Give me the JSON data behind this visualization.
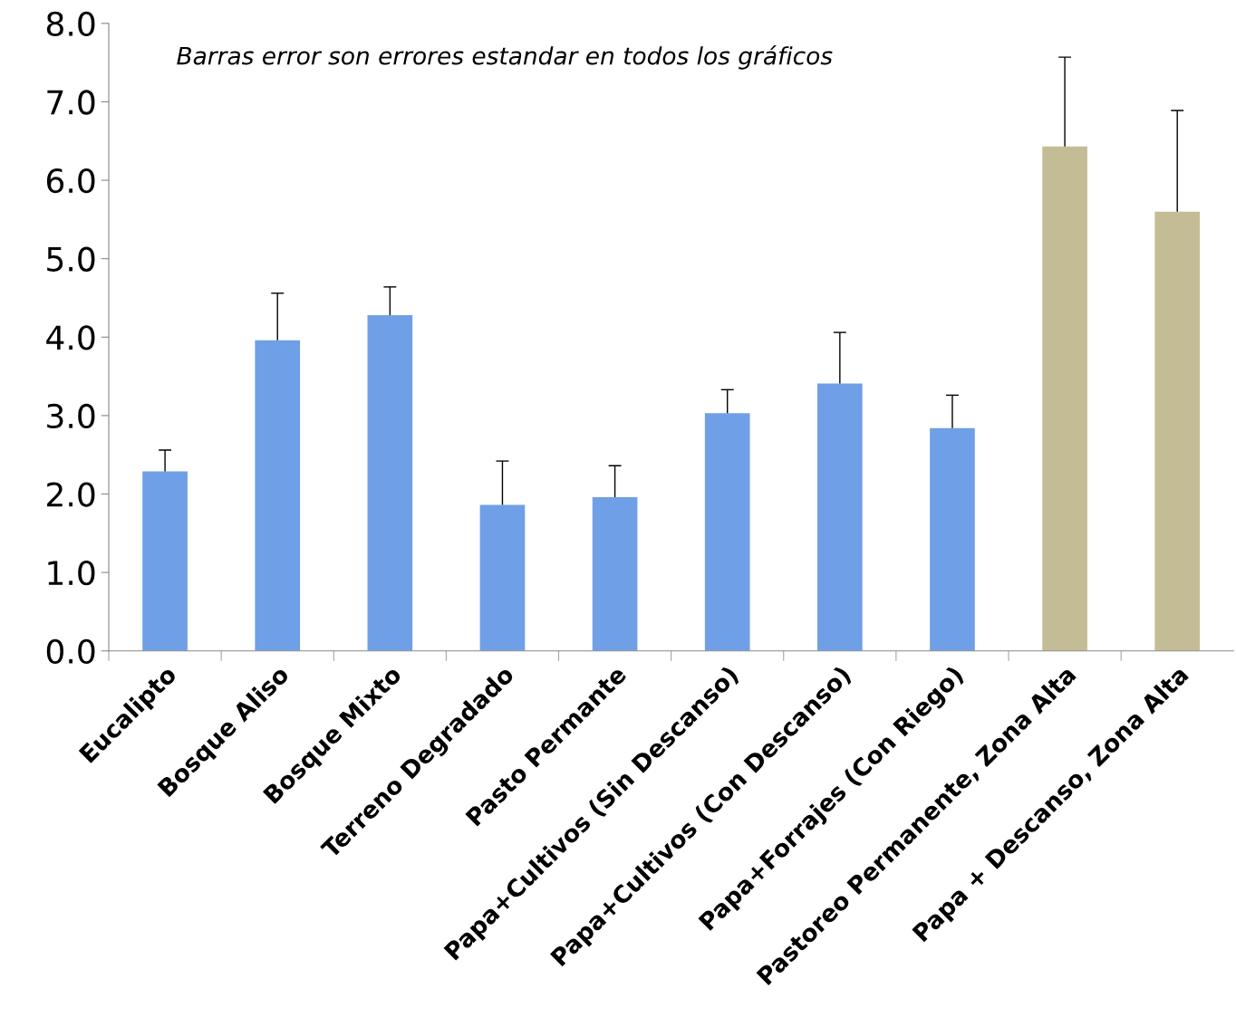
{
  "chart_data": {
    "type": "bar",
    "categories": [
      "Eucalipto",
      "Bosque Aliso",
      "Bosque Mixto",
      "Terreno Degradado",
      "Pasto Permante",
      "Papa+Cultivos (Sin Descanso)",
      "Papa+Cultivos (Con Descanso)",
      "Papa+Forrajes (Con Riego)",
      "Pastoreo Permanente, Zona Alta",
      "Papa + Descanso, Zona Alta"
    ],
    "values": [
      2.29,
      3.96,
      4.28,
      1.86,
      1.96,
      3.03,
      3.41,
      2.84,
      6.43,
      5.6
    ],
    "errors": [
      [
        2.29,
        2.56
      ],
      [
        3.96,
        4.56
      ],
      [
        4.28,
        4.64
      ],
      [
        1.86,
        2.42
      ],
      [
        1.96,
        2.36
      ],
      [
        3.03,
        3.33
      ],
      [
        3.41,
        4.06
      ],
      [
        2.84,
        3.26
      ],
      [
        6.43,
        7.57
      ],
      [
        5.6,
        6.89
      ]
    ],
    "colors": [
      "#6f9fe6",
      "#6f9fe6",
      "#6f9fe6",
      "#6f9fe6",
      "#6f9fe6",
      "#6f9fe6",
      "#6f9fe6",
      "#6f9fe6",
      "#c4bc94",
      "#c4bc94"
    ],
    "ylim": [
      0,
      8
    ],
    "yticks": [
      {
        "value": 0,
        "label": "0.0"
      },
      {
        "value": 1,
        "label": "1.0"
      },
      {
        "value": 2,
        "label": "2.0"
      },
      {
        "value": 3,
        "label": "3.0"
      },
      {
        "value": 4,
        "label": "4.0"
      },
      {
        "value": 5,
        "label": "5.0"
      },
      {
        "value": 6,
        "label": "6.0"
      },
      {
        "value": 7,
        "label": "7.0"
      },
      {
        "value": 8,
        "label": "8.0"
      }
    ],
    "annotations": [
      "Barras error son errores estandar en todos los gráficos"
    ],
    "grid": false
  }
}
